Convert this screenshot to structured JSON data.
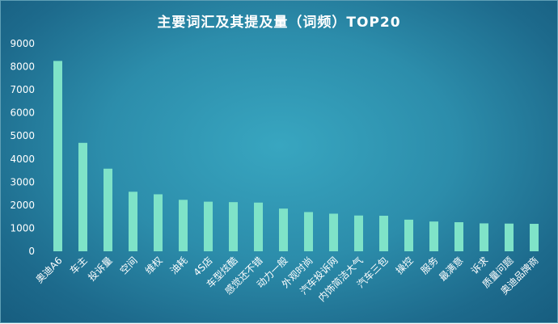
{
  "chart_data": {
    "type": "bar",
    "title": "主要词汇及其提及量（词频）TOP20",
    "xlabel": "",
    "ylabel": "",
    "ylim": [
      0,
      9000
    ],
    "yticks": [
      0,
      1000,
      2000,
      3000,
      4000,
      5000,
      6000,
      7000,
      8000,
      9000
    ],
    "grid": false,
    "legend": "none",
    "bar_color": "#7fe3c8",
    "categories": [
      "奥迪A6",
      "车主",
      "投诉量",
      "空间",
      "维权",
      "油耗",
      "4S店",
      "车型炫酷",
      "感觉还不错",
      "动力一般",
      "外观时尚",
      "汽车投诉网",
      "内饰简洁大气",
      "汽车三包",
      "操控",
      "服务",
      "最满意",
      "诉求",
      "质量问题",
      "奥迪品牌商"
    ],
    "values": [
      8250,
      4700,
      3580,
      2580,
      2470,
      2230,
      2150,
      2130,
      2110,
      1850,
      1700,
      1630,
      1550,
      1540,
      1370,
      1290,
      1260,
      1210,
      1200,
      1190
    ]
  }
}
